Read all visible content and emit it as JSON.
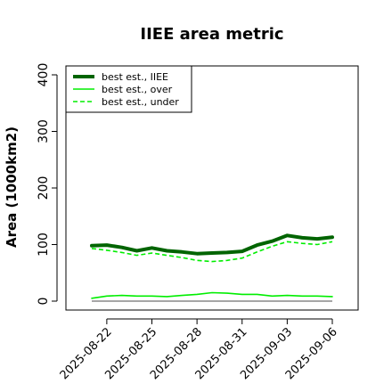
{
  "chart_data": {
    "type": "line",
    "title": "IIEE area metric",
    "xlabel": "",
    "ylabel": "Area (1000km2)",
    "x": [
      "2025-08-21",
      "2025-08-22",
      "2025-08-23",
      "2025-08-24",
      "2025-08-25",
      "2025-08-26",
      "2025-08-27",
      "2025-08-28",
      "2025-08-29",
      "2025-08-30",
      "2025-08-31",
      "2025-09-01",
      "2025-09-02",
      "2025-09-03",
      "2025-09-04",
      "2025-09-05",
      "2025-09-06"
    ],
    "x_tick_labels": [
      "2025-08-22",
      "2025-08-25",
      "2025-08-28",
      "2025-08-31",
      "2025-09-03",
      "2025-09-06"
    ],
    "y_ticks": [
      0,
      100,
      200,
      300,
      400
    ],
    "ylim": [
      -5,
      410
    ],
    "grid": false,
    "legend_position": "top-left",
    "series": [
      {
        "name": "best est., IIEE",
        "color": "#006400",
        "style": "solid",
        "width": 4,
        "values": [
          98,
          99,
          95,
          89,
          94,
          89,
          87,
          84,
          85,
          86,
          88,
          99,
          106,
          116,
          112,
          110,
          113
        ]
      },
      {
        "name": "best est., over",
        "color": "#00ee00",
        "style": "solid",
        "width": 1.6,
        "values": [
          5,
          9,
          10,
          9,
          9,
          8,
          10,
          12,
          15,
          14,
          12,
          12,
          9,
          10,
          9,
          9,
          8
        ]
      },
      {
        "name": "best est., under",
        "color": "#00ee00",
        "style": "dashed",
        "width": 1.6,
        "values": [
          93,
          90,
          86,
          81,
          85,
          81,
          77,
          72,
          70,
          72,
          76,
          87,
          97,
          105,
          102,
          100,
          105
        ]
      }
    ],
    "baseline": {
      "value": 0,
      "color": "#888888"
    }
  }
}
